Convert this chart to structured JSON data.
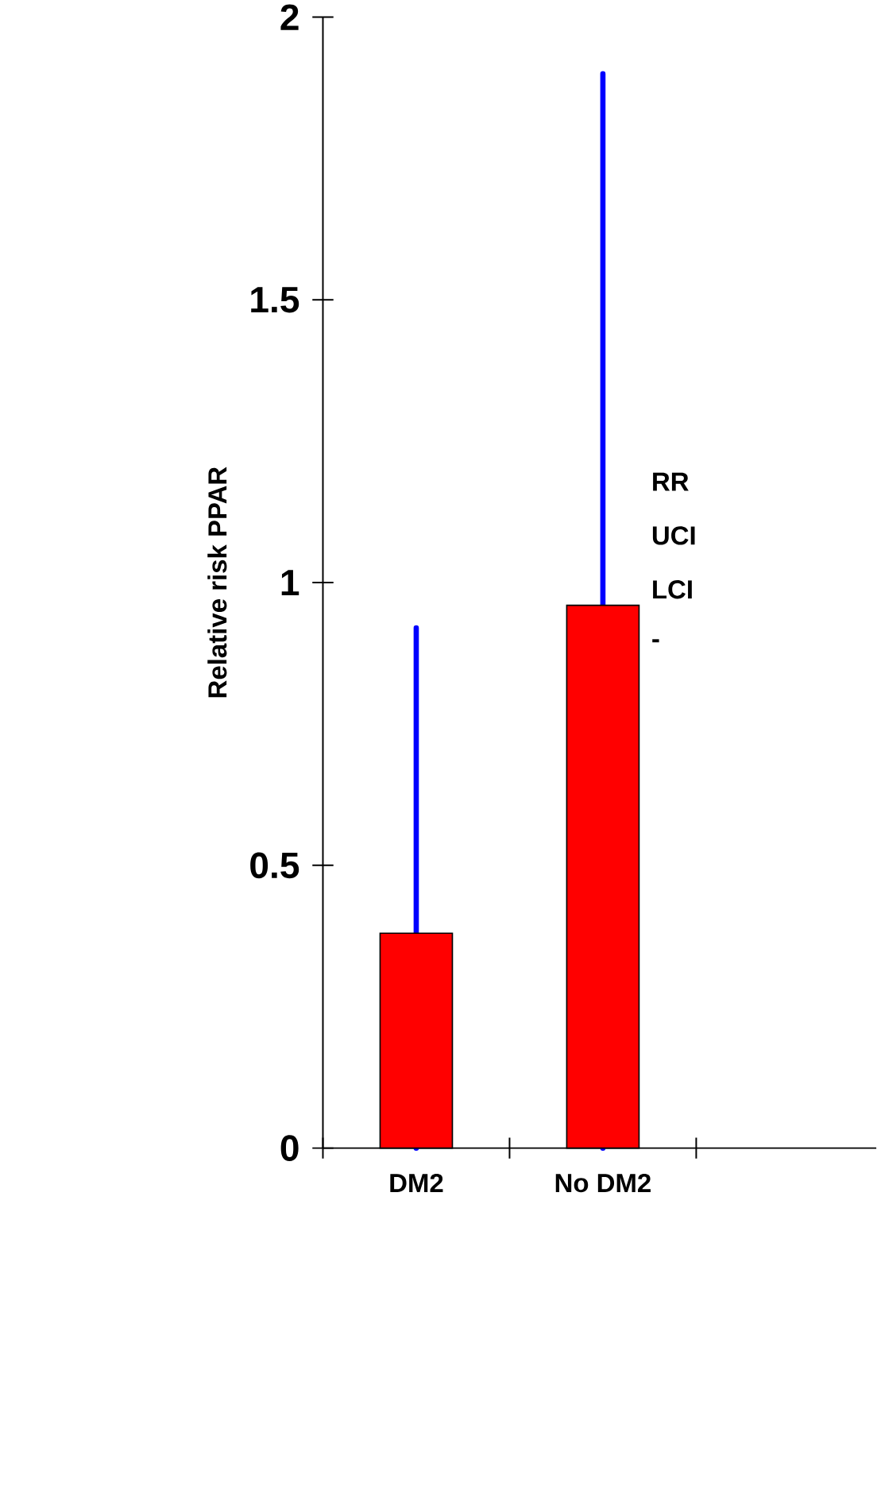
{
  "chart_data": {
    "type": "bar",
    "ylabel": "Relative risk PPAR",
    "categories": [
      "DM2",
      "No DM2"
    ],
    "values": [
      0.38,
      0.96
    ],
    "errors": [
      [
        0,
        0.92
      ],
      [
        0,
        1.9
      ]
    ],
    "color": "#ff0000",
    "ylim": [
      0,
      2
    ],
    "yticks": [
      0,
      0.5,
      1,
      1.5,
      2
    ],
    "annotations": [
      "RR",
      "UCI",
      "LCI",
      "-"
    ]
  }
}
